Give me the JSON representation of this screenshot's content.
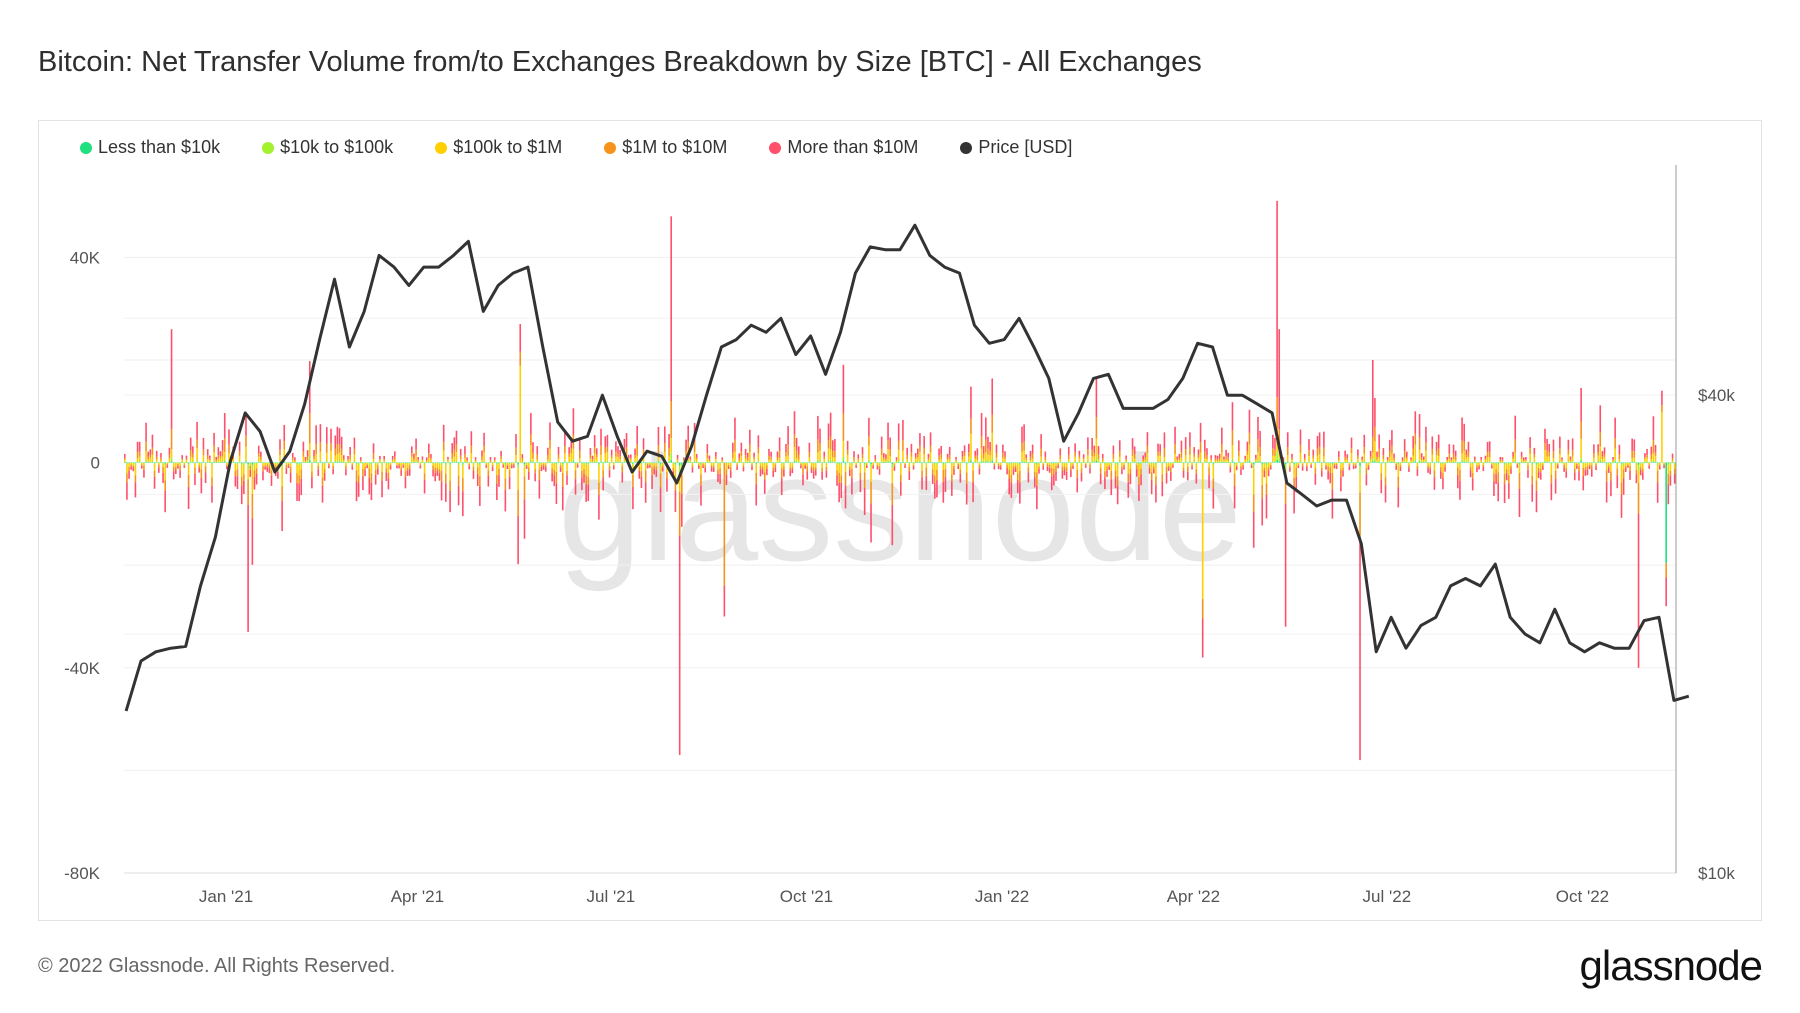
{
  "title": "Bitcoin: Net Transfer Volume from/to Exchanges Breakdown by Size [BTC] - All Exchanges",
  "footer": "© 2022 Glassnode. All Rights Reserved.",
  "logo": "glassnode",
  "watermark": "glassnode",
  "chart_data": {
    "type": "bar",
    "stacked": true,
    "title": "Bitcoin: Net Transfer Volume from/to Exchanges Breakdown by Size [BTC] - All Exchanges",
    "x_range": [
      "2020-11-14",
      "2022-11-14"
    ],
    "x_ticks": [
      {
        "date": "2021-01-01",
        "label": "Jan '21"
      },
      {
        "date": "2021-04-01",
        "label": "Apr '21"
      },
      {
        "date": "2021-07-01",
        "label": "Jul '21"
      },
      {
        "date": "2021-10-01",
        "label": "Oct '21"
      },
      {
        "date": "2022-01-01",
        "label": "Jan '22"
      },
      {
        "date": "2022-04-01",
        "label": "Apr '22"
      },
      {
        "date": "2022-07-01",
        "label": "Jul '22"
      },
      {
        "date": "2022-10-01",
        "label": "Oct '22"
      }
    ],
    "y_left": {
      "range": [
        -80000,
        58000
      ],
      "ticks": [
        {
          "v": 40000,
          "label": "40K"
        },
        {
          "v": 0,
          "label": "0"
        },
        {
          "v": -40000,
          "label": "-40K"
        },
        {
          "v": -80000,
          "label": "-80K"
        }
      ]
    },
    "y_right": {
      "scale": "log",
      "range": [
        10000,
        78000
      ],
      "ticks": [
        {
          "v": 40000,
          "label": "$40k"
        },
        {
          "v": 10000,
          "label": "$10k"
        }
      ]
    },
    "grid": true,
    "legend_position": "top-left",
    "series": [
      {
        "name": "Less than $10k",
        "color": "#1ee07f"
      },
      {
        "name": "$10k to $100k",
        "color": "#a3f22e"
      },
      {
        "name": "$100k to $1M",
        "color": "#ffd000"
      },
      {
        "name": "$1M to $10M",
        "color": "#f7931a"
      },
      {
        "name": "More than $10M",
        "color": "#ff4f6b"
      },
      {
        "name": "Price [USD]",
        "color": "#333333",
        "type": "line",
        "axis": "right"
      }
    ],
    "notable_net_flows": [
      {
        "date": "2021-01-11",
        "value": -33000,
        "series": "More than $10M"
      },
      {
        "date": "2020-12-06",
        "value": 26000,
        "series": "More than $10M"
      },
      {
        "date": "2021-05-19",
        "value": 27000,
        "series": "$100k to $1M"
      },
      {
        "date": "2021-07-29",
        "value": 48000,
        "series": "More than $10M"
      },
      {
        "date": "2021-08-02",
        "value": -57000,
        "series": "More than $10M"
      },
      {
        "date": "2021-08-23",
        "value": -30000,
        "series": "$1M to $10M"
      },
      {
        "date": "2022-04-05",
        "value": -38000,
        "series": "$100k to $1M"
      },
      {
        "date": "2022-05-10",
        "value": 51000,
        "series": "More than $10M"
      },
      {
        "date": "2022-05-11",
        "value": 26000,
        "series": "More than $10M"
      },
      {
        "date": "2022-05-14",
        "value": -32000,
        "series": "More than $10M"
      },
      {
        "date": "2022-06-18",
        "value": -58000,
        "series": "More than $10M"
      },
      {
        "date": "2022-06-24",
        "value": 20000,
        "series": "More than $10M"
      },
      {
        "date": "2022-10-27",
        "value": -40000,
        "series": "More than $10M"
      },
      {
        "date": "2022-11-09",
        "value": -28000,
        "series": "Less than $10k"
      },
      {
        "date": "2022-11-07",
        "value": 14000,
        "series": "$100k to $1M"
      }
    ],
    "price": {
      "start": "2020-11-15",
      "interval_days": 7,
      "values": [
        16000,
        18500,
        19000,
        19200,
        19300,
        23000,
        26500,
        33000,
        38000,
        36000,
        32000,
        34000,
        39000,
        47000,
        56000,
        46000,
        51000,
        60000,
        58000,
        55000,
        58000,
        58000,
        60000,
        62500,
        51000,
        55000,
        57000,
        58000,
        46000,
        37000,
        35000,
        35500,
        40000,
        35500,
        32000,
        34000,
        33500,
        31000,
        34500,
        40000,
        46000,
        47000,
        49000,
        48000,
        50000,
        45000,
        47500,
        42500,
        48000,
        57000,
        61500,
        61000,
        61000,
        65500,
        60000,
        58000,
        57000,
        49000,
        46500,
        47000,
        50000,
        46000,
        42000,
        35000,
        38000,
        42000,
        42500,
        38500,
        38500,
        38500,
        39500,
        42000,
        46500,
        46000,
        40000,
        40000,
        39000,
        38000,
        31000,
        30000,
        29000,
        29500,
        29500,
        26000,
        19000,
        21000,
        19200,
        20500,
        21000,
        23000,
        23500,
        23000,
        24500,
        21000,
        20000,
        19500,
        21500,
        19500,
        19000,
        19500,
        19200,
        19200,
        20800,
        21000,
        16500,
        16700
      ]
    }
  }
}
